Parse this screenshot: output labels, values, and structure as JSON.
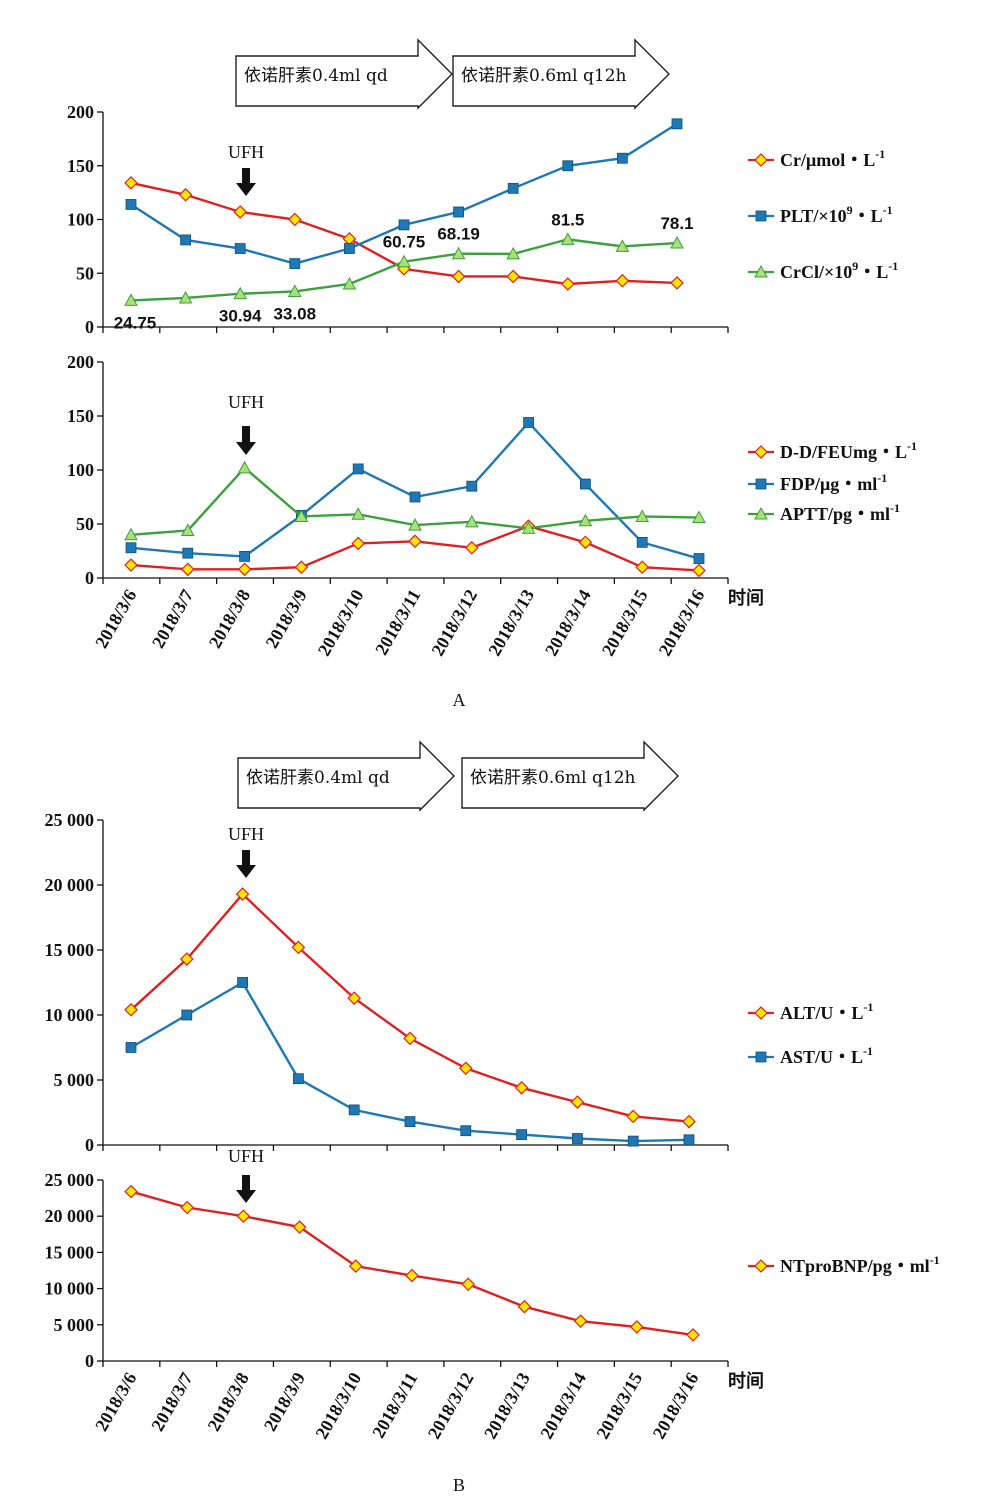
{
  "dates": [
    "2018/3/6",
    "2018/3/7",
    "2018/3/8",
    "2018/3/9",
    "2018/3/10",
    "2018/3/11",
    "2018/3/12",
    "2018/3/13",
    "2018/3/14",
    "2018/3/15",
    "2018/3/16"
  ],
  "time_label": "时间",
  "panel_a_label": "A",
  "panel_b_label": "B",
  "ufh_label": "UFH",
  "colors": {
    "red": "#e02020",
    "blue": "#1f78b4",
    "green": "#3ca03c",
    "diamond_fill": "#ffe600",
    "triangle_fill": "#a8e07a",
    "square_fill": "#1f78b4"
  },
  "chart_data": [
    {
      "id": "A1",
      "type": "line",
      "title": "",
      "ylim": [
        0,
        200
      ],
      "yticks": [
        "0",
        "50",
        "100",
        "150",
        "200"
      ],
      "arrows": [
        "依诺肝素0.4ml qd",
        "依诺肝素0.6ml q12h"
      ],
      "ufh_at": "2018/3/8",
      "series": [
        {
          "name": "Cr/μmol・L",
          "sup": "-1",
          "marker": "diamond",
          "color": "red",
          "values": [
            134,
            123,
            107,
            100,
            82,
            54,
            47,
            47,
            40,
            43,
            41
          ]
        },
        {
          "name": "PLT/×10",
          "sup": "9",
          "name2": "・L",
          "sup2": "-1",
          "marker": "square",
          "color": "blue",
          "values": [
            114,
            81,
            73,
            59,
            73,
            95,
            107,
            129,
            150,
            157,
            189
          ]
        },
        {
          "name": "CrCl/×10",
          "sup": "9",
          "name2": "・L",
          "sup2": "-1",
          "marker": "triangle",
          "color": "green",
          "values": [
            24.75,
            27,
            30.94,
            33.08,
            40,
            60.75,
            68.19,
            68,
            81.5,
            75,
            78.1
          ]
        }
      ],
      "data_labels": [
        {
          "series": 2,
          "index": 0,
          "text": "24.75",
          "pos": "below"
        },
        {
          "series": 2,
          "index": 2,
          "text": "30.94",
          "pos": "below"
        },
        {
          "series": 2,
          "index": 3,
          "text": "33.08",
          "pos": "below"
        },
        {
          "series": 2,
          "index": 5,
          "text": "60.75",
          "pos": "above"
        },
        {
          "series": 2,
          "index": 6,
          "text": "68.19",
          "pos": "above"
        },
        {
          "series": 2,
          "index": 8,
          "text": "81.5",
          "pos": "above"
        },
        {
          "series": 2,
          "index": 10,
          "text": "78.1",
          "pos": "above"
        }
      ]
    },
    {
      "id": "A2",
      "type": "line",
      "ylim": [
        0,
        200
      ],
      "yticks": [
        "0",
        "50",
        "100",
        "150",
        "200"
      ],
      "ufh_at": "2018/3/8",
      "series": [
        {
          "name": "D-D/FEUmg・L",
          "sup": "-1",
          "marker": "diamond",
          "color": "red",
          "values": [
            12,
            8,
            8,
            10,
            32,
            34,
            28,
            48,
            33,
            10,
            7
          ]
        },
        {
          "name": "FDP/μg・ml",
          "sup": "-1",
          "marker": "square",
          "color": "blue",
          "values": [
            28,
            23,
            20,
            58,
            101,
            75,
            85,
            144,
            87,
            33,
            18
          ]
        },
        {
          "name": "APTT/pg・ml",
          "sup": "-1",
          "marker": "triangle",
          "color": "green",
          "values": [
            40,
            44,
            102,
            57,
            59,
            49,
            52,
            46,
            53,
            57,
            56
          ]
        }
      ]
    },
    {
      "id": "B1",
      "type": "line",
      "ylim": [
        0,
        25000
      ],
      "yticks": [
        "0",
        "5 000",
        "10 000",
        "15 000",
        "20 000",
        "25 000"
      ],
      "arrows": [
        "依诺肝素0.4ml qd",
        "依诺肝素0.6ml q12h"
      ],
      "ufh_at": "2018/3/8",
      "series": [
        {
          "name": "ALT/U・L",
          "sup": "-1",
          "marker": "diamond",
          "color": "red",
          "values": [
            10400,
            14300,
            19300,
            15200,
            11300,
            8200,
            5900,
            4400,
            3300,
            2200,
            1800
          ]
        },
        {
          "name": "AST/U・L",
          "sup": "-1",
          "marker": "square",
          "color": "blue",
          "values": [
            7500,
            10000,
            12500,
            5100,
            2700,
            1800,
            1100,
            800,
            500,
            300,
            400
          ]
        }
      ]
    },
    {
      "id": "B2",
      "type": "line",
      "ylim": [
        0,
        25000
      ],
      "yticks": [
        "0",
        "5 000",
        "10 000",
        "15 000",
        "20 000",
        "25 000"
      ],
      "ufh_at": "2018/3/8",
      "series": [
        {
          "name": "NTproBNP/pg・ml",
          "sup": "-1",
          "marker": "diamond",
          "color": "red",
          "values": [
            23400,
            21200,
            20000,
            18500,
            13100,
            11800,
            10600,
            7500,
            5500,
            4700,
            3600
          ]
        }
      ]
    }
  ]
}
